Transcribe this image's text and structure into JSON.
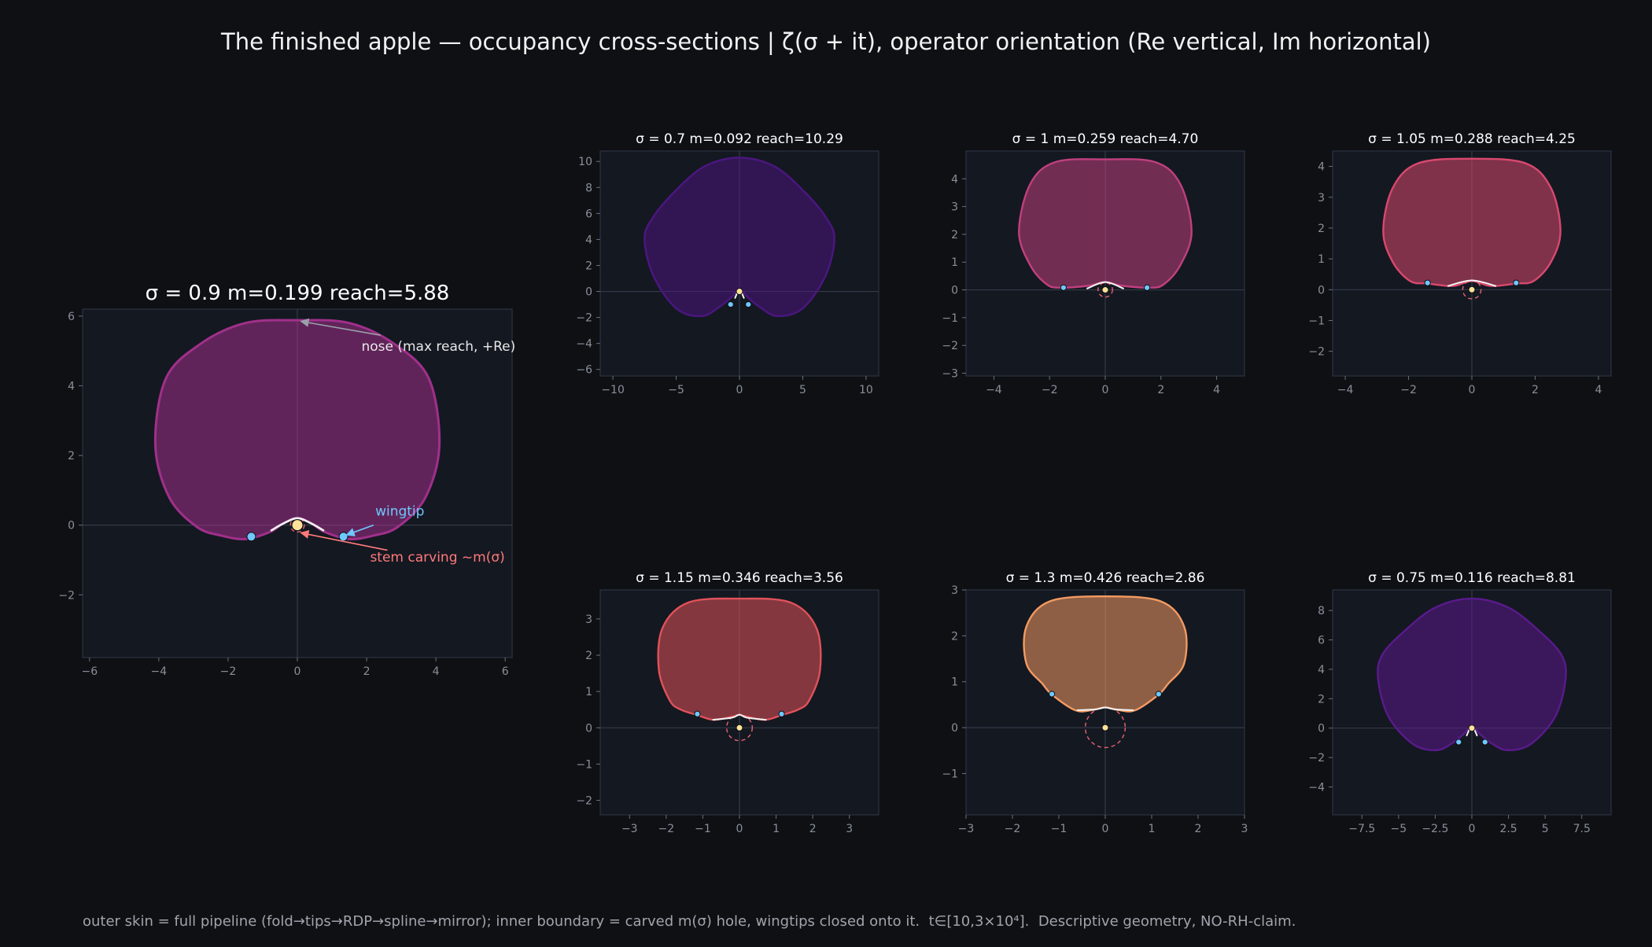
{
  "figure": {
    "title": "The finished apple — occupancy cross-sections  |  ζ(σ + it), operator orientation (Re vertical, Im horizontal)",
    "footer": "outer skin = full pipeline (fold→tips→RDP→spline→mirror); inner boundary = carved m(σ) hole, wingtips closed onto it.  t∈[10,3×10⁴].  Descriptive geometry, NO-RH-claim.",
    "background": "#0e1014",
    "axes_background": "#141821"
  },
  "annotations": {
    "nose": "nose (max reach, +Re)",
    "wingtip": "wingtip",
    "stem": "stem carving  ~m(σ)",
    "nose_color": "#e8e8e8",
    "wingtip_color": "#6ec8ff",
    "stem_color": "#ff7a7a"
  },
  "chart_data": [
    {
      "type": "area",
      "title": "σ = 0.9   m=0.199   reach=5.88",
      "sigma": 0.9,
      "m": 0.199,
      "reach": 5.88,
      "color": "#a0308a",
      "xlim": [
        -6.2,
        6.2
      ],
      "ylim": [
        -3.8,
        6.2
      ],
      "xticks": [
        -6,
        -4,
        -2,
        0,
        2,
        4,
        6
      ],
      "yticks": [
        -2,
        0,
        2,
        4,
        6
      ],
      "outline": [
        [
          0,
          5.88
        ],
        [
          1.5,
          5.8
        ],
        [
          2.8,
          5.2
        ],
        [
          3.8,
          4.2
        ],
        [
          4.1,
          2.3
        ],
        [
          3.7,
          0.8
        ],
        [
          2.9,
          -0.05
        ],
        [
          2.2,
          -0.3
        ],
        [
          1.5,
          -0.4
        ],
        [
          0.8,
          -0.2
        ],
        [
          0.4,
          0.05
        ],
        [
          0,
          0.2
        ],
        [
          -0.4,
          0.05
        ],
        [
          -0.8,
          -0.2
        ],
        [
          -1.5,
          -0.4
        ],
        [
          -2.2,
          -0.3
        ],
        [
          -2.9,
          -0.05
        ],
        [
          -3.7,
          0.8
        ],
        [
          -4.1,
          2.3
        ],
        [
          -3.8,
          4.2
        ],
        [
          -2.8,
          5.2
        ],
        [
          -1.5,
          5.8
        ]
      ],
      "stem_curve": [
        [
          -0.75,
          -0.15
        ],
        [
          -0.4,
          0.05
        ],
        [
          0,
          0.2
        ],
        [
          0.4,
          0.05
        ],
        [
          0.75,
          -0.15
        ]
      ],
      "wingtips": [
        [
          -1.33,
          -0.33
        ],
        [
          1.33,
          -0.33
        ]
      ],
      "origin_dot": [
        0,
        0
      ],
      "hole_radius": 0.2
    },
    {
      "type": "area",
      "title": "σ = 0.7   m=0.092   reach=10.29",
      "sigma": 0.7,
      "m": 0.092,
      "reach": 10.29,
      "color": "#4b1680",
      "xlim": [
        -11,
        11
      ],
      "ylim": [
        -6.5,
        10.8
      ],
      "xticks": [
        -10,
        -5,
        0,
        5,
        10
      ],
      "yticks": [
        -6,
        -4,
        -2,
        0,
        2,
        4,
        6,
        8,
        10
      ],
      "outline": [
        [
          0,
          10.29
        ],
        [
          2.8,
          9.6
        ],
        [
          5.2,
          7.6
        ],
        [
          6.9,
          5.6
        ],
        [
          7.5,
          4.0
        ],
        [
          6.8,
          1.2
        ],
        [
          5.0,
          -1.3
        ],
        [
          3.0,
          -1.9
        ],
        [
          1.6,
          -1.2
        ],
        [
          0.6,
          -0.4
        ],
        [
          0.2,
          0.1
        ],
        [
          0,
          0.25
        ],
        [
          -0.2,
          0.1
        ],
        [
          -0.6,
          -0.4
        ],
        [
          -1.6,
          -1.2
        ],
        [
          -3.0,
          -1.9
        ],
        [
          -5.0,
          -1.3
        ],
        [
          -6.8,
          1.2
        ],
        [
          -7.5,
          4.0
        ],
        [
          -6.9,
          5.6
        ],
        [
          -5.2,
          7.6
        ],
        [
          -2.8,
          9.6
        ]
      ],
      "stem_curve": [
        [
          -0.35,
          -0.5
        ],
        [
          -0.15,
          -0.05
        ],
        [
          0,
          0.15
        ],
        [
          0.15,
          -0.05
        ],
        [
          0.35,
          -0.5
        ]
      ],
      "wingtips": [
        [
          -0.7,
          -1.0
        ],
        [
          0.7,
          -1.0
        ]
      ],
      "origin_dot": [
        0,
        0
      ],
      "hole_radius": 0.09
    },
    {
      "type": "area",
      "title": "σ = 1   m=0.259   reach=4.70",
      "sigma": 1,
      "m": 0.259,
      "reach": 4.7,
      "color": "#c0407e",
      "xlim": [
        -5,
        5
      ],
      "ylim": [
        -3.1,
        5.0
      ],
      "xticks": [
        -4,
        -2,
        0,
        2,
        4
      ],
      "yticks": [
        -3,
        -2,
        -1,
        0,
        1,
        2,
        3,
        4
      ],
      "outline": [
        [
          0,
          4.7
        ],
        [
          1.8,
          4.6
        ],
        [
          2.7,
          3.8
        ],
        [
          3.1,
          2.1
        ],
        [
          2.7,
          0.9
        ],
        [
          2.1,
          0.2
        ],
        [
          1.6,
          0.08
        ],
        [
          0.6,
          0.15
        ],
        [
          0,
          0.28
        ],
        [
          -0.6,
          0.15
        ],
        [
          -1.6,
          0.08
        ],
        [
          -2.1,
          0.2
        ],
        [
          -2.7,
          0.9
        ],
        [
          -3.1,
          2.1
        ],
        [
          -2.7,
          3.8
        ],
        [
          -1.8,
          4.6
        ]
      ],
      "stem_curve": [
        [
          -0.65,
          0.05
        ],
        [
          0,
          0.28
        ],
        [
          0.65,
          0.05
        ]
      ],
      "wingtips": [
        [
          -1.5,
          0.08
        ],
        [
          1.5,
          0.08
        ]
      ],
      "origin_dot": [
        0,
        0
      ],
      "hole_radius": 0.26
    },
    {
      "type": "area",
      "title": "σ = 1.05   m=0.288   reach=4.25",
      "sigma": 1.05,
      "m": 0.288,
      "reach": 4.25,
      "color": "#d9486e",
      "xlim": [
        -4.4,
        4.4
      ],
      "ylim": [
        -2.8,
        4.5
      ],
      "xticks": [
        -4,
        -2,
        0,
        2,
        4
      ],
      "yticks": [
        -2,
        -1,
        0,
        1,
        2,
        3,
        4
      ],
      "outline": [
        [
          0,
          4.25
        ],
        [
          1.7,
          4.1
        ],
        [
          2.5,
          3.3
        ],
        [
          2.8,
          1.9
        ],
        [
          2.5,
          0.9
        ],
        [
          1.95,
          0.28
        ],
        [
          1.4,
          0.2
        ],
        [
          0.6,
          0.12
        ],
        [
          0,
          0.28
        ],
        [
          -0.6,
          0.12
        ],
        [
          -1.4,
          0.2
        ],
        [
          -1.95,
          0.28
        ],
        [
          -2.5,
          0.9
        ],
        [
          -2.8,
          1.9
        ],
        [
          -2.5,
          3.3
        ],
        [
          -1.7,
          4.1
        ]
      ],
      "stem_curve": [
        [
          -0.75,
          0.12
        ],
        [
          0,
          0.3
        ],
        [
          0.75,
          0.12
        ]
      ],
      "wingtips": [
        [
          -1.4,
          0.22
        ],
        [
          1.4,
          0.22
        ]
      ],
      "origin_dot": [
        0,
        0
      ],
      "hole_radius": 0.29
    },
    {
      "type": "area",
      "title": "σ = 1.15   m=0.346   reach=3.56",
      "sigma": 1.15,
      "m": 0.346,
      "reach": 3.56,
      "color": "#e0525a",
      "xlim": [
        -3.8,
        3.8
      ],
      "ylim": [
        -2.4,
        3.8
      ],
      "xticks": [
        -3,
        -2,
        -1,
        0,
        1,
        2,
        3
      ],
      "yticks": [
        -2,
        -1,
        0,
        1,
        2,
        3
      ],
      "outline": [
        [
          0,
          3.56
        ],
        [
          1.4,
          3.45
        ],
        [
          2.1,
          2.75
        ],
        [
          2.2,
          1.6
        ],
        [
          1.9,
          0.75
        ],
        [
          1.6,
          0.5
        ],
        [
          1.15,
          0.35
        ],
        [
          0.7,
          0.22
        ],
        [
          0.15,
          0.32
        ],
        [
          0,
          0.36
        ],
        [
          -0.15,
          0.32
        ],
        [
          -0.7,
          0.22
        ],
        [
          -1.15,
          0.35
        ],
        [
          -1.6,
          0.5
        ],
        [
          -1.9,
          0.75
        ],
        [
          -2.2,
          1.6
        ],
        [
          -2.1,
          2.75
        ],
        [
          -1.4,
          3.45
        ]
      ],
      "stem_curve": [
        [
          -0.72,
          0.22
        ],
        [
          -0.2,
          0.28
        ],
        [
          0,
          0.36
        ],
        [
          0.2,
          0.28
        ],
        [
          0.72,
          0.22
        ]
      ],
      "wingtips": [
        [
          -1.15,
          0.38
        ],
        [
          1.15,
          0.38
        ]
      ],
      "origin_dot": [
        0,
        0
      ],
      "hole_radius": 0.35
    },
    {
      "type": "area",
      "title": "σ = 1.3   m=0.426   reach=2.86",
      "sigma": 1.3,
      "m": 0.426,
      "reach": 2.86,
      "color": "#f39a62",
      "xlim": [
        -3.0,
        3.0
      ],
      "ylim": [
        -1.9,
        3.0
      ],
      "xticks": [
        -3,
        -2,
        -1,
        0,
        1,
        2,
        3
      ],
      "yticks": [
        -1,
        0,
        1,
        2,
        3
      ],
      "outline": [
        [
          0,
          2.86
        ],
        [
          1.2,
          2.75
        ],
        [
          1.7,
          2.2
        ],
        [
          1.7,
          1.4
        ],
        [
          1.35,
          0.95
        ],
        [
          1.15,
          0.72
        ],
        [
          0.65,
          0.38
        ],
        [
          0.3,
          0.38
        ],
        [
          0,
          0.44
        ],
        [
          -0.3,
          0.38
        ],
        [
          -0.65,
          0.38
        ],
        [
          -1.15,
          0.72
        ],
        [
          -1.35,
          0.95
        ],
        [
          -1.7,
          1.4
        ],
        [
          -1.7,
          2.2
        ],
        [
          -1.2,
          2.75
        ]
      ],
      "stem_curve": [
        [
          -0.6,
          0.38
        ],
        [
          -0.2,
          0.4
        ],
        [
          0,
          0.44
        ],
        [
          0.2,
          0.4
        ],
        [
          0.6,
          0.38
        ]
      ],
      "wingtips": [
        [
          -1.15,
          0.73
        ],
        [
          1.15,
          0.73
        ]
      ],
      "origin_dot": [
        0,
        0
      ],
      "hole_radius": 0.43
    },
    {
      "type": "area",
      "title": "σ = 0.75   m=0.116   reach=8.81",
      "sigma": 0.75,
      "m": 0.116,
      "reach": 8.81,
      "color": "#5a1a8c",
      "xlim": [
        -9.5,
        9.5
      ],
      "ylim": [
        -5.9,
        9.4
      ],
      "xticks": [
        -7.5,
        -5.0,
        -2.5,
        0.0,
        2.5,
        5.0,
        7.5
      ],
      "yticks": [
        -4,
        -2,
        0,
        2,
        4,
        6,
        8
      ],
      "outline": [
        [
          0,
          8.81
        ],
        [
          2.5,
          8.2
        ],
        [
          4.6,
          6.6
        ],
        [
          6.1,
          5.0
        ],
        [
          6.4,
          3.4
        ],
        [
          5.7,
          0.8
        ],
        [
          4.0,
          -1.1
        ],
        [
          2.4,
          -1.5
        ],
        [
          1.3,
          -1.0
        ],
        [
          0.5,
          -0.35
        ],
        [
          0.15,
          0.1
        ],
        [
          0,
          0.2
        ],
        [
          -0.15,
          0.1
        ],
        [
          -0.5,
          -0.35
        ],
        [
          -1.3,
          -1.0
        ],
        [
          -2.4,
          -1.5
        ],
        [
          -4.0,
          -1.1
        ],
        [
          -5.7,
          0.8
        ],
        [
          -6.4,
          3.4
        ],
        [
          -6.1,
          5.0
        ],
        [
          -4.6,
          6.6
        ],
        [
          -2.5,
          8.2
        ]
      ],
      "stem_curve": [
        [
          -0.35,
          -0.5
        ],
        [
          -0.15,
          -0.05
        ],
        [
          0,
          0.15
        ],
        [
          0.15,
          -0.05
        ],
        [
          0.35,
          -0.5
        ]
      ],
      "wingtips": [
        [
          -0.9,
          -0.95
        ],
        [
          0.9,
          -0.95
        ]
      ],
      "origin_dot": [
        0,
        0
      ],
      "hole_radius": 0.12
    }
  ]
}
